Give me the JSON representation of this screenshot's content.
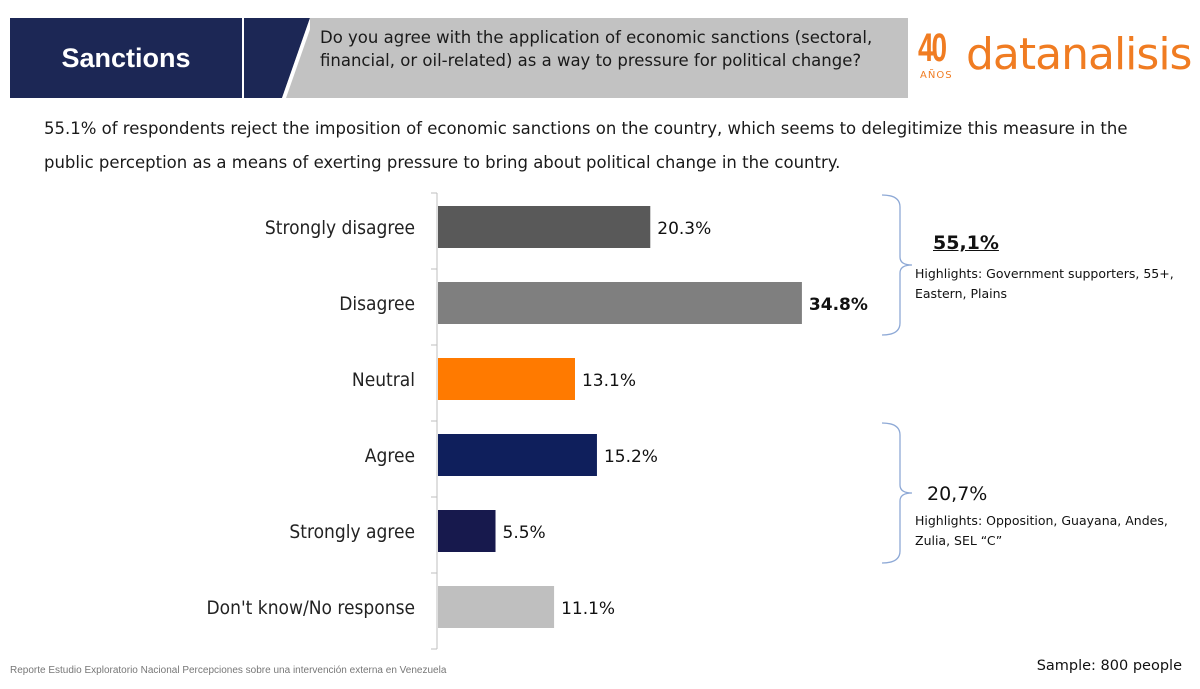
{
  "header": {
    "section_title": "Sanctions",
    "question": "Do you agree with the application of economic sanctions (sectoral, financial, or oil-related) as a way to pressure for political change?",
    "logo_number": "40",
    "logo_years": "AÑOS",
    "logo_word": "datanalisis"
  },
  "summary": "55.1% of respondents reject the imposition of economic sanctions on the country, which seems to delegitimize this measure in the public perception as a means of exerting pressure to bring about political change in the country.",
  "chart_data": {
    "type": "bar",
    "orientation": "horizontal",
    "title": "",
    "xlabel": "",
    "ylabel": "",
    "xlim": [
      0,
      35
    ],
    "grid": false,
    "categories": [
      "Strongly disagree",
      "Disagree",
      "Neutral",
      "Agree",
      "Strongly agree",
      "Don't know/No response"
    ],
    "values": [
      20.3,
      34.8,
      13.1,
      15.2,
      5.5,
      11.1
    ],
    "value_labels": [
      "20.3%",
      "34.8%",
      "13.1%",
      "15.2%",
      "5.5%",
      "11.1%"
    ],
    "bold_labels": [
      false,
      true,
      false,
      false,
      false,
      false
    ],
    "colors": [
      "#595959",
      "#7f7f7f",
      "#ff7a00",
      "#0f1f5c",
      "#17194d",
      "#bfbfbf"
    ]
  },
  "groups": [
    {
      "total": "55,1%",
      "note": "Highlights: Government supporters, 55+, Eastern, Plains",
      "categories": [
        "Strongly disagree",
        "Disagree"
      ]
    },
    {
      "total": "20,7%",
      "note": "Highlights: Opposition, Guayana, Andes, Zulia, SEL “C”",
      "categories": [
        "Agree",
        "Strongly agree"
      ]
    }
  ],
  "footer": {
    "source": "Reporte Estudio Exploratorio Nacional Percepciones sobre una intervención externa en Venezuela",
    "sample": "Sample: 800 people"
  },
  "colors": {
    "navy": "#1c2755",
    "header_grey": "#c2c2c2",
    "brand_orange": "#f07c22",
    "bracket": "#8ea9d6"
  }
}
